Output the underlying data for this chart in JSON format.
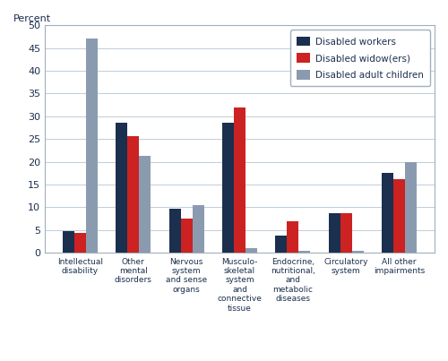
{
  "categories": [
    "Intellectual\ndisability",
    "Other\nmental\ndisorders",
    "Nervous\nsystem\nand sense\norgans",
    "Musculo-\nskeletal\nsystem\nand\nconnective\ntissue",
    "Endocrine,\nnutritional,\nand\nmetabolic\ndiseases",
    "Circulatory\nsystem",
    "All other\nimpairments"
  ],
  "disabled_workers": [
    4.7,
    28.5,
    9.6,
    28.5,
    3.8,
    8.7,
    17.5
  ],
  "disabled_widowers": [
    4.3,
    25.6,
    7.6,
    32.0,
    6.9,
    8.7,
    16.2
  ],
  "disabled_adult_children": [
    47.0,
    21.3,
    10.5,
    1.0,
    0.5,
    0.5,
    20.0
  ],
  "colors": {
    "workers": "#1b2f4e",
    "widowers": "#cc2222",
    "adult_children": "#8a9bb0"
  },
  "legend_labels": [
    "Disabled workers",
    "Disabled widow(ers)",
    "Disabled adult children"
  ],
  "ylabel": "Percent",
  "ylim": [
    0,
    50
  ],
  "yticks": [
    0,
    5,
    10,
    15,
    20,
    25,
    30,
    35,
    40,
    45,
    50
  ],
  "bar_width": 0.22,
  "figsize": [
    5.0,
    4.03
  ],
  "dpi": 100
}
